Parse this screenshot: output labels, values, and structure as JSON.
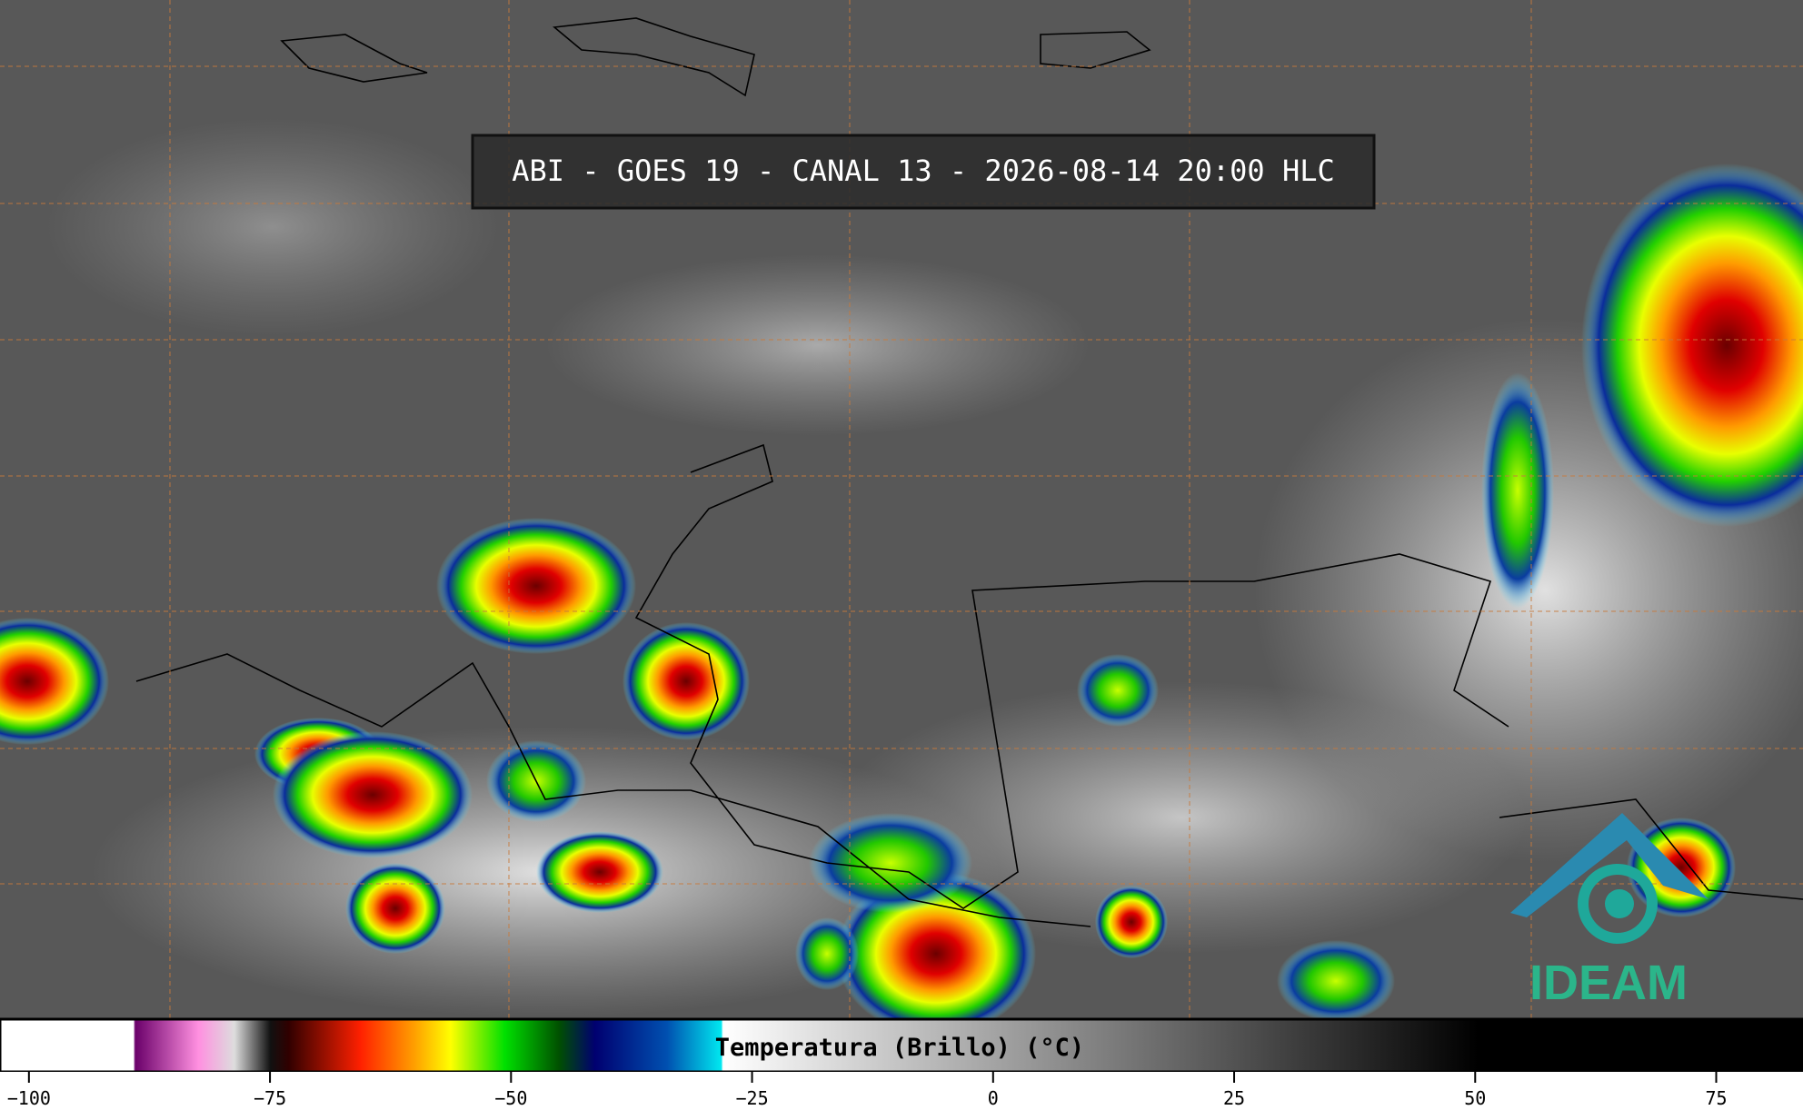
{
  "header": {
    "title": "ABI - GOES 19 - CANAL 13 - 2026-08-14 20:00 HLC"
  },
  "colorbar": {
    "label": "Temperatura (Brillo) (°C)",
    "lim": [
      -103,
      84
    ],
    "ticks": [
      {
        "value": -100,
        "label": "−100"
      },
      {
        "value": -75,
        "label": "−75"
      },
      {
        "value": -50,
        "label": "−50"
      },
      {
        "value": -25,
        "label": "−25"
      },
      0,
      25,
      50,
      75
    ]
  },
  "logo": {
    "text": "IDEAM"
  }
}
